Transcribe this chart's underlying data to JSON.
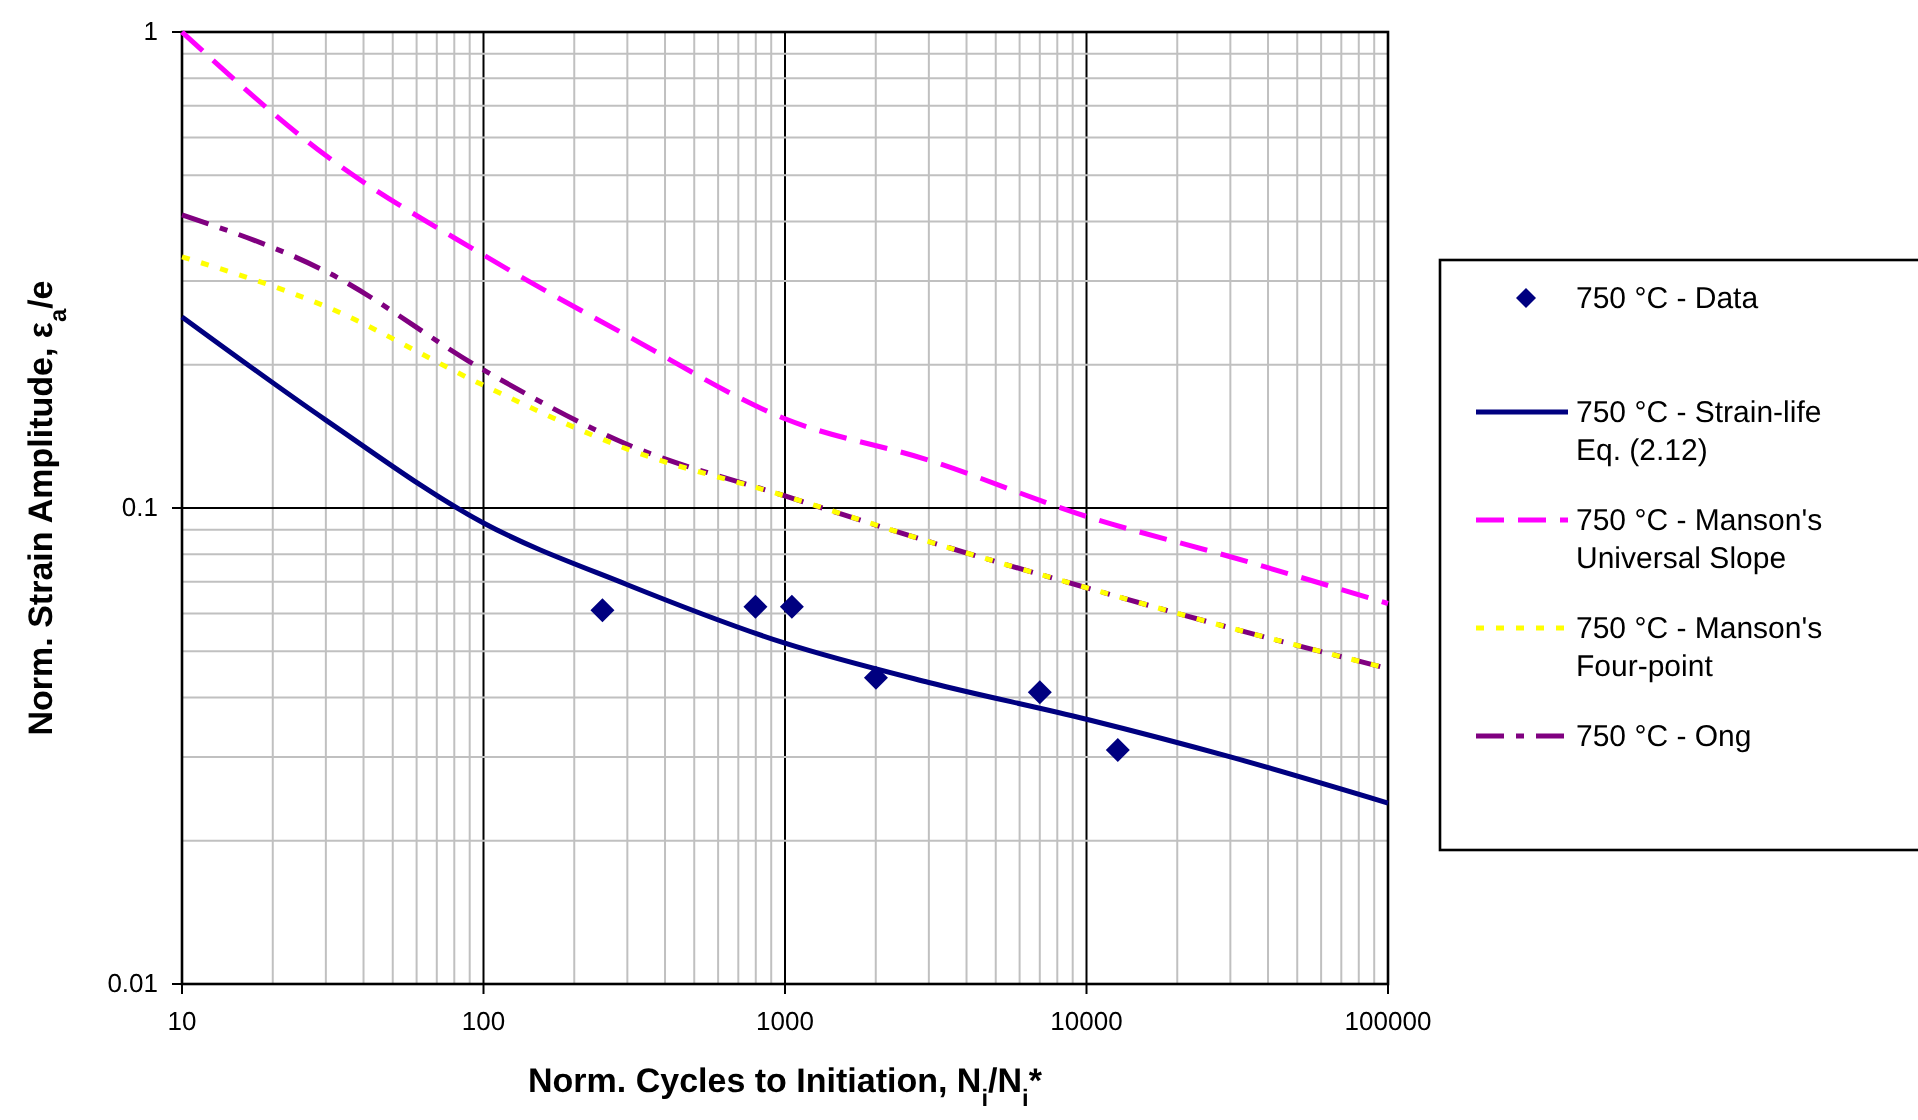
{
  "chart_data": {
    "type": "line",
    "xlabel": "Norm. Cycles to Initiation, N$_{i}$/N$_{i}$*",
    "ylabel": "Norm. Strain Amplitude, ε$_{a}$/e",
    "log": "xy",
    "grid": true,
    "legend": "right",
    "xlim": [
      10,
      100000
    ],
    "ylim": [
      0.01,
      1
    ],
    "xticks": [
      10,
      {
        "value": 20,
        "label": null
      },
      {
        "value": 30,
        "label": null
      },
      {
        "value": 40,
        "label": null
      },
      {
        "value": 50,
        "label": null
      },
      {
        "value": 60,
        "label": null
      },
      {
        "value": 70,
        "label": null
      },
      {
        "value": 80,
        "label": null
      },
      {
        "value": 90,
        "label": null
      },
      100,
      {
        "value": 200,
        "label": null
      },
      {
        "value": 300,
        "label": null
      },
      {
        "value": 400,
        "label": null
      },
      {
        "value": 500,
        "label": null
      },
      {
        "value": 600,
        "label": null
      },
      {
        "value": 700,
        "label": null
      },
      {
        "value": 800,
        "label": null
      },
      {
        "value": 900,
        "label": null
      },
      1000,
      {
        "value": 2000,
        "label": null
      },
      {
        "value": 3000,
        "label": null
      },
      {
        "value": 4000,
        "label": null
      },
      {
        "value": 5000,
        "label": null
      },
      {
        "value": 6000,
        "label": null
      },
      {
        "value": 7000,
        "label": null
      },
      {
        "value": 8000,
        "label": null
      },
      {
        "value": 9000,
        "label": null
      },
      10000,
      {
        "value": 20000,
        "label": null
      },
      {
        "value": 30000,
        "label": null
      },
      {
        "value": 40000,
        "label": null
      },
      {
        "value": 50000,
        "label": null
      },
      {
        "value": 60000,
        "label": null
      },
      {
        "value": 70000,
        "label": null
      },
      {
        "value": 80000,
        "label": null
      },
      {
        "value": 90000,
        "label": null
      },
      100000
    ],
    "yticks": [
      0.01,
      {
        "value": 0.02,
        "label": null
      },
      {
        "value": 0.03,
        "label": null
      },
      {
        "value": 0.04,
        "label": null
      },
      {
        "value": 0.05,
        "label": null
      },
      {
        "value": 0.06,
        "label": null
      },
      {
        "value": 0.07,
        "label": null
      },
      {
        "value": 0.08,
        "label": null
      },
      {
        "value": 0.09,
        "label": null
      },
      0.1,
      {
        "value": 0.2,
        "label": null
      },
      {
        "value": 0.3,
        "label": null
      },
      {
        "value": 0.4,
        "label": null
      },
      {
        "value": 0.5,
        "label": null
      },
      {
        "value": 0.6,
        "label": null
      },
      {
        "value": 0.7,
        "label": null
      },
      {
        "value": 0.8,
        "label": null
      },
      {
        "value": 0.9,
        "label": null
      },
      1
    ],
    "series": [
      {
        "name": "750 °C - Data",
        "type": "scatter",
        "marker": "diamond",
        "color": "#000080",
        "x": [
          248,
          798,
          1054,
          2003,
          7000,
          12700
        ],
        "values": [
          0.061,
          0.062,
          0.062,
          0.044,
          0.041,
          0.031
        ]
      },
      {
        "name": "750 °C - Strain-life Eq. (2.12)",
        "line_style": "solid",
        "color": "#000080",
        "x": [
          10,
          30,
          100,
          300,
          1000,
          3000,
          10000,
          30000,
          100000
        ],
        "values": [
          0.252,
          0.153,
          0.093,
          0.069,
          0.052,
          0.043,
          0.036,
          0.03,
          0.024
        ]
      },
      {
        "name": "750 °C - Manson's Universal Slope",
        "line_style": "dashed",
        "color": "#ff00ff",
        "x": [
          10,
          30,
          100,
          300,
          1000,
          3000,
          10000,
          30000,
          100000
        ],
        "values": [
          1.0,
          0.55,
          0.34,
          0.23,
          0.154,
          0.126,
          0.096,
          0.079,
          0.063
        ]
      },
      {
        "name": "750 °C - Manson's Four-point",
        "line_style": "dotted",
        "color": "#ffff00",
        "x": [
          10,
          30,
          100,
          300,
          1000,
          3000,
          10000,
          30000,
          100000
        ],
        "values": [
          0.337,
          0.265,
          0.181,
          0.133,
          0.106,
          0.085,
          0.068,
          0.056,
          0.046
        ]
      },
      {
        "name": "750 °C - Ong",
        "line_style": "dashdot",
        "color": "#800080",
        "x": [
          10,
          30,
          100,
          300,
          1000,
          3000,
          10000,
          30000,
          100000
        ],
        "values": [
          0.413,
          0.314,
          0.195,
          0.136,
          0.106,
          0.085,
          0.068,
          0.056,
          0.046
        ]
      }
    ]
  }
}
